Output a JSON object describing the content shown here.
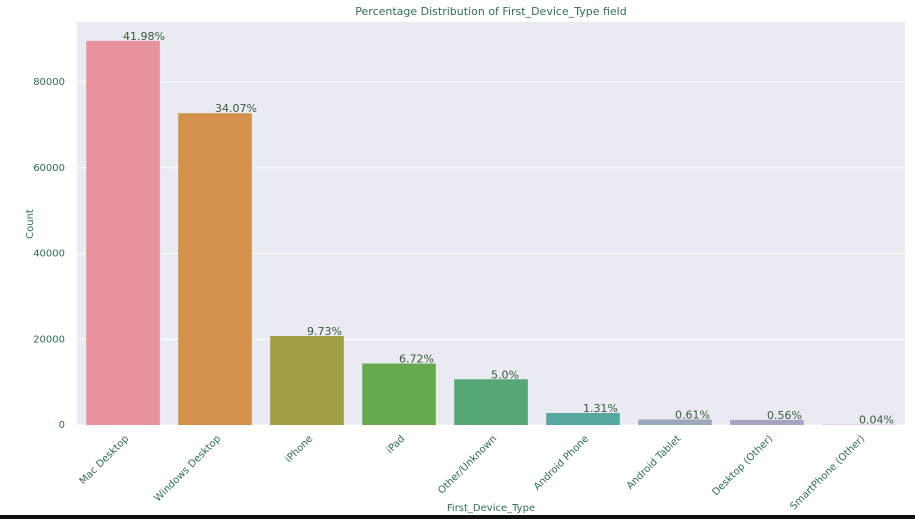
{
  "chart_data": {
    "type": "bar",
    "title": "Percentage Distribution of First_Device_Type field",
    "x_label": "First_Device_Type",
    "y_label": "Count",
    "categories": [
      "Mac Desktop",
      "Windows Desktop",
      "iPhone",
      "iPad",
      "Other/Unknown",
      "Android Phone",
      "Android Tablet",
      "Desktop (Other)",
      "SmartPhone (Other)"
    ],
    "values": [
      89600,
      72716,
      20760,
      14339,
      10667,
      2803,
      1292,
      1199,
      76
    ],
    "annotations": [
      "41.98%",
      "34.07%",
      "9.73%",
      "6.72%",
      "5.0%",
      "1.31%",
      "0.61%",
      "0.56%",
      "0.04%"
    ],
    "colors": [
      "#e8919f",
      "#d4914b",
      "#a19f43",
      "#67a94f",
      "#55a876",
      "#56a7a0",
      "#9ba8bc",
      "#a7a3c4",
      "#c7a1c9"
    ],
    "ylim": [
      0,
      94000
    ],
    "yticks": [
      0,
      20000,
      40000,
      60000,
      80000
    ],
    "grid": true
  }
}
